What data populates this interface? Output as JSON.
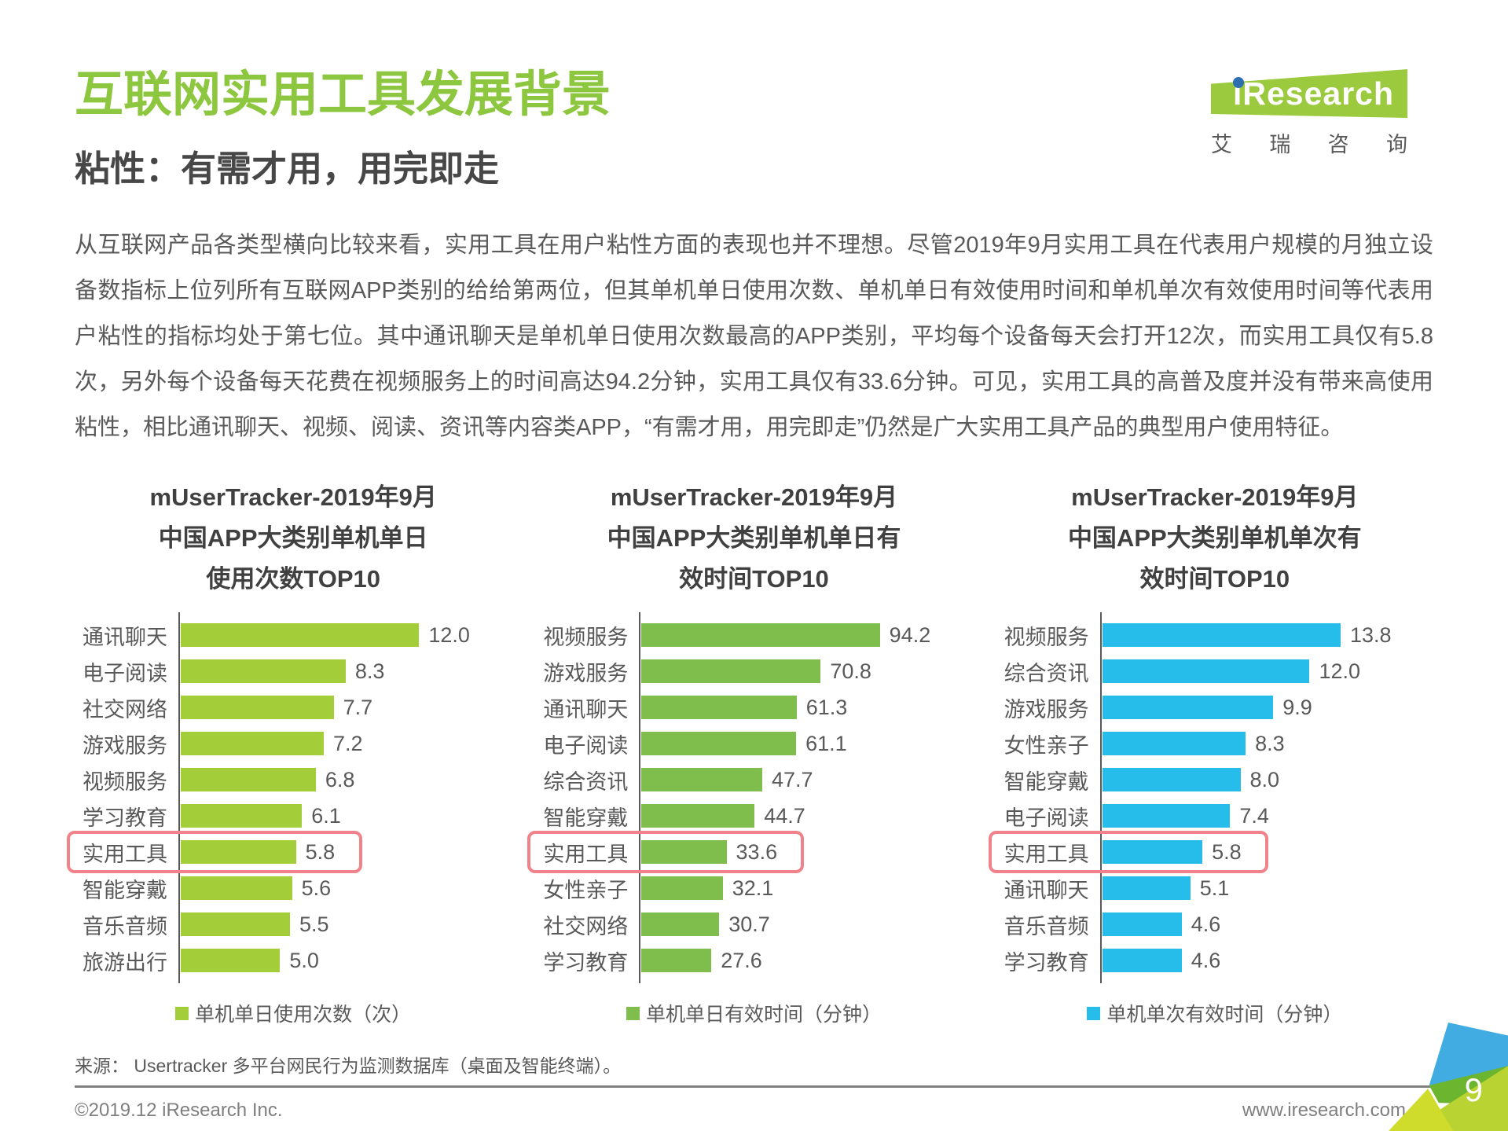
{
  "page": {
    "title": "互联网实用工具发展背景",
    "subtitle": "粘性：有需才用，用完即走",
    "paragraph": "从互联网产品各类型横向比较来看，实用工具在用户粘性方面的表现也并不理想。尽管2019年9月实用工具在代表用户规模的月独立设备数指标上位列所有互联网APP类别的给给第两位，但其单机单日使用次数、单机单日有效使用时间和单机单次有效使用时间等代表用户粘性的指标均处于第七位。其中通讯聊天是单机单日使用次数最高的APP类别，平均每个设备每天会打开12次，而实用工具仅有5.8次，另外每个设备每天花费在视频服务上的时间高达94.2分钟，实用工具仅有33.6分钟。可见，实用工具的高普及度并没有带来高使用粘性，相比通讯聊天、视频、阅读、资讯等内容类APP，“有需才用，用完即走”仍然是广大实用工具产品的典型用户使用特征。",
    "source": "来源： Usertracker 多平台网民行为监测数据库（桌面及智能终端）。",
    "footer": {
      "left": "©2019.12 iResearch Inc.",
      "right": "www.iresearch.com.cn",
      "page_number": "9"
    }
  },
  "logo": {
    "brand": "iResearch",
    "sub": "艾 瑞 咨 询"
  },
  "colors": {
    "title_green": "#8DC63F",
    "highlight_box_pink": "#F0828A",
    "logo_green": "#9CCA3E",
    "logo_dot_blue": "#2D6FB0",
    "axis_gray": "#595959"
  },
  "chart_data": [
    {
      "type": "bar",
      "orientation": "horizontal",
      "title_lines": [
        "mUserTracker-2019年9月",
        "中国APP大类别单机单日",
        "使用次数TOP10"
      ],
      "categories": [
        "通讯聊天",
        "电子阅读",
        "社交网络",
        "游戏服务",
        "视频服务",
        "学习教育",
        "实用工具",
        "智能穿戴",
        "音乐音频",
        "旅游出行"
      ],
      "values": [
        12.0,
        8.3,
        7.7,
        7.2,
        6.8,
        6.1,
        5.8,
        5.6,
        5.5,
        5.0
      ],
      "highlight_category": "实用工具",
      "bar_color": "#A4CE39",
      "legend": "单机单日使用次数（次）",
      "xlim": [
        0,
        13
      ],
      "grid": false,
      "legend_position": "bottom"
    },
    {
      "type": "bar",
      "orientation": "horizontal",
      "title_lines": [
        "mUserTracker-2019年9月",
        "中国APP大类别单机单日有",
        "效时间TOP10"
      ],
      "categories": [
        "视频服务",
        "游戏服务",
        "通讯聊天",
        "电子阅读",
        "综合资讯",
        "智能穿戴",
        "实用工具",
        "女性亲子",
        "社交网络",
        "学习教育"
      ],
      "values": [
        94.2,
        70.8,
        61.3,
        61.1,
        47.7,
        44.7,
        33.6,
        32.1,
        30.7,
        27.6
      ],
      "highlight_category": "实用工具",
      "bar_color": "#7FBE4D",
      "legend": "单机单日有效时间（分钟）",
      "xlim": [
        0,
        100
      ],
      "grid": false,
      "legend_position": "bottom"
    },
    {
      "type": "bar",
      "orientation": "horizontal",
      "title_lines": [
        "mUserTracker-2019年9月",
        "中国APP大类别单机单次有",
        "效时间TOP10"
      ],
      "categories": [
        "视频服务",
        "综合资讯",
        "游戏服务",
        "女性亲子",
        "智能穿戴",
        "电子阅读",
        "实用工具",
        "通讯聊天",
        "音乐音频",
        "学习教育"
      ],
      "values": [
        13.8,
        12.0,
        9.9,
        8.3,
        8.0,
        7.4,
        5.8,
        5.1,
        4.6,
        4.6
      ],
      "highlight_category": "实用工具",
      "bar_color": "#27BDEA",
      "legend": "单机单次有效时间（分钟）",
      "xlim": [
        0,
        15
      ],
      "grid": false,
      "legend_position": "bottom"
    }
  ]
}
